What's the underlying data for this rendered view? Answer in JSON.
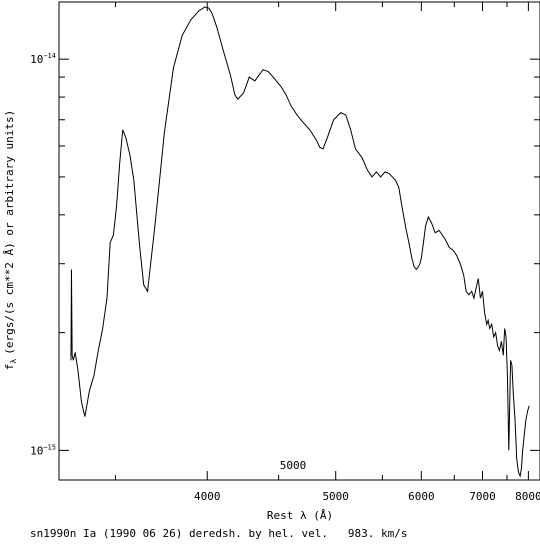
{
  "chart_data": {
    "type": "line",
    "title": "",
    "xlabel": "Rest λ (Å)",
    "ylabel": "fλ (ergs/(s cm**2 Å) or arbitrary units)",
    "ylabel_main": "(ergs/(s cm**2 Å) or arbitrary units)",
    "ylabel_symbol": "f",
    "ylabel_sub": "λ",
    "x_scale": "reciprocal",
    "y_scale": "log",
    "xlim": [
      3250,
      8300
    ],
    "ylim": [
      8.4e-16,
      1.4e-14
    ],
    "x_ticks_major": [
      {
        "value": 4000,
        "label": "4000"
      },
      {
        "value": 5000,
        "label": "5000"
      },
      {
        "value": 6000,
        "label": "6000"
      },
      {
        "value": 7000,
        "label": "7000"
      },
      {
        "value": 8000,
        "label": "8000"
      }
    ],
    "x_ticks_minor": [
      3500,
      4500,
      5500,
      6500,
      7500
    ],
    "y_ticks_major": [
      {
        "value": 1e-15,
        "label_base": "10",
        "label_exp": "−15"
      },
      {
        "value": 1e-14,
        "label_base": "10",
        "label_exp": "−14"
      }
    ],
    "y_ticks_minor": [
      2e-15,
      3e-15,
      4e-15,
      5e-15,
      6e-15,
      7e-15,
      8e-15,
      9e-15
    ],
    "top_axis_label": "5000",
    "grid": false,
    "legend": "none",
    "line_color": "#000000",
    "series": [
      {
        "x": [
          3300,
          3302,
          3305,
          3310,
          3318,
          3330,
          3345,
          3360,
          3380,
          3400,
          3420,
          3440,
          3460,
          3475,
          3490,
          3505,
          3520,
          3535,
          3550,
          3570,
          3590,
          3605,
          3620,
          3640,
          3660,
          3700,
          3750,
          3800,
          3850,
          3900,
          3950,
          3985,
          4010,
          4030,
          4060,
          4100,
          4150,
          4180,
          4200,
          4240,
          4280,
          4320,
          4380,
          4420,
          4470,
          4520,
          4560,
          4600,
          4650,
          4700,
          4760,
          4820,
          4850,
          4880,
          4920,
          4980,
          5050,
          5100,
          5150,
          5200,
          5270,
          5330,
          5380,
          5430,
          5480,
          5530,
          5580,
          5620,
          5660,
          5700,
          5740,
          5790,
          5830,
          5870,
          5900,
          5930,
          5960,
          5980,
          6000,
          6030,
          6060,
          6100,
          6150,
          6200,
          6260,
          6310,
          6360,
          6420,
          6480,
          6540,
          6600,
          6660,
          6700,
          6750,
          6800,
          6840,
          6880,
          6920,
          6960,
          7000,
          7040,
          7080,
          7110,
          7140,
          7180,
          7220,
          7260,
          7300,
          7340,
          7380,
          7420,
          7450,
          7480,
          7510,
          7540,
          7560,
          7580,
          7610,
          7640,
          7680,
          7720,
          7760,
          7800,
          7830,
          7860,
          7900,
          7940,
          7980,
          8020
        ],
        "y": [
          1.7e-15,
          2.9e-15,
          1.75e-15,
          1.7e-15,
          1.78e-15,
          1.6e-15,
          1.33e-15,
          1.22e-15,
          1.42e-15,
          1.55e-15,
          1.8e-15,
          2.05e-15,
          2.45e-15,
          3.4e-15,
          3.55e-15,
          4.2e-15,
          5.4e-15,
          6.6e-15,
          6.3e-15,
          5.7e-15,
          4.9e-15,
          4e-15,
          3.3e-15,
          2.65e-15,
          2.55e-15,
          3.8e-15,
          6.5e-15,
          9.5e-15,
          1.15e-14,
          1.26e-14,
          1.33e-14,
          1.36e-14,
          1.35e-14,
          1.31e-14,
          1.21e-14,
          1.06e-14,
          9.1e-15,
          8.1e-15,
          7.9e-15,
          8.2e-15,
          9e-15,
          8.8e-15,
          9.4e-15,
          9.3e-15,
          8.9e-15,
          8.5e-15,
          8.1e-15,
          7.6e-15,
          7.2e-15,
          6.9e-15,
          6.6e-15,
          6.2e-15,
          5.95e-15,
          5.9e-15,
          6.3e-15,
          7e-15,
          7.3e-15,
          7.2e-15,
          6.6e-15,
          5.9e-15,
          5.6e-15,
          5.2e-15,
          5e-15,
          5.15e-15,
          5e-15,
          5.15e-15,
          5.1e-15,
          5e-15,
          4.9e-15,
          4.7e-15,
          4.2e-15,
          3.7e-15,
          3.4e-15,
          3.1e-15,
          2.95e-15,
          2.9e-15,
          2.95e-15,
          3e-15,
          3.1e-15,
          3.4e-15,
          3.75e-15,
          3.95e-15,
          3.8e-15,
          3.6e-15,
          3.65e-15,
          3.55e-15,
          3.45e-15,
          3.3e-15,
          3.25e-15,
          3.15e-15,
          3e-15,
          2.8e-15,
          2.55e-15,
          2.5e-15,
          2.55e-15,
          2.45e-15,
          2.6e-15,
          2.75e-15,
          2.45e-15,
          2.55e-15,
          2.25e-15,
          2.1e-15,
          2.15e-15,
          2.05e-15,
          2.1e-15,
          1.95e-15,
          2e-15,
          1.85e-15,
          1.8e-15,
          1.9e-15,
          1.75e-15,
          2.05e-15,
          1.95e-15,
          1.55e-15,
          1e-15,
          1.3e-15,
          1.7e-15,
          1.65e-15,
          1.4e-15,
          1.2e-15,
          9.5e-16,
          8.8e-16,
          8.6e-16,
          9e-16,
          1e-15,
          1.1e-15,
          1.2e-15,
          1.26e-15,
          1.3e-15
        ]
      }
    ]
  },
  "footer": {
    "caption": "sn1990n Ia (1990 06 26) deredsh. by hel. vel.   983. km/s"
  }
}
